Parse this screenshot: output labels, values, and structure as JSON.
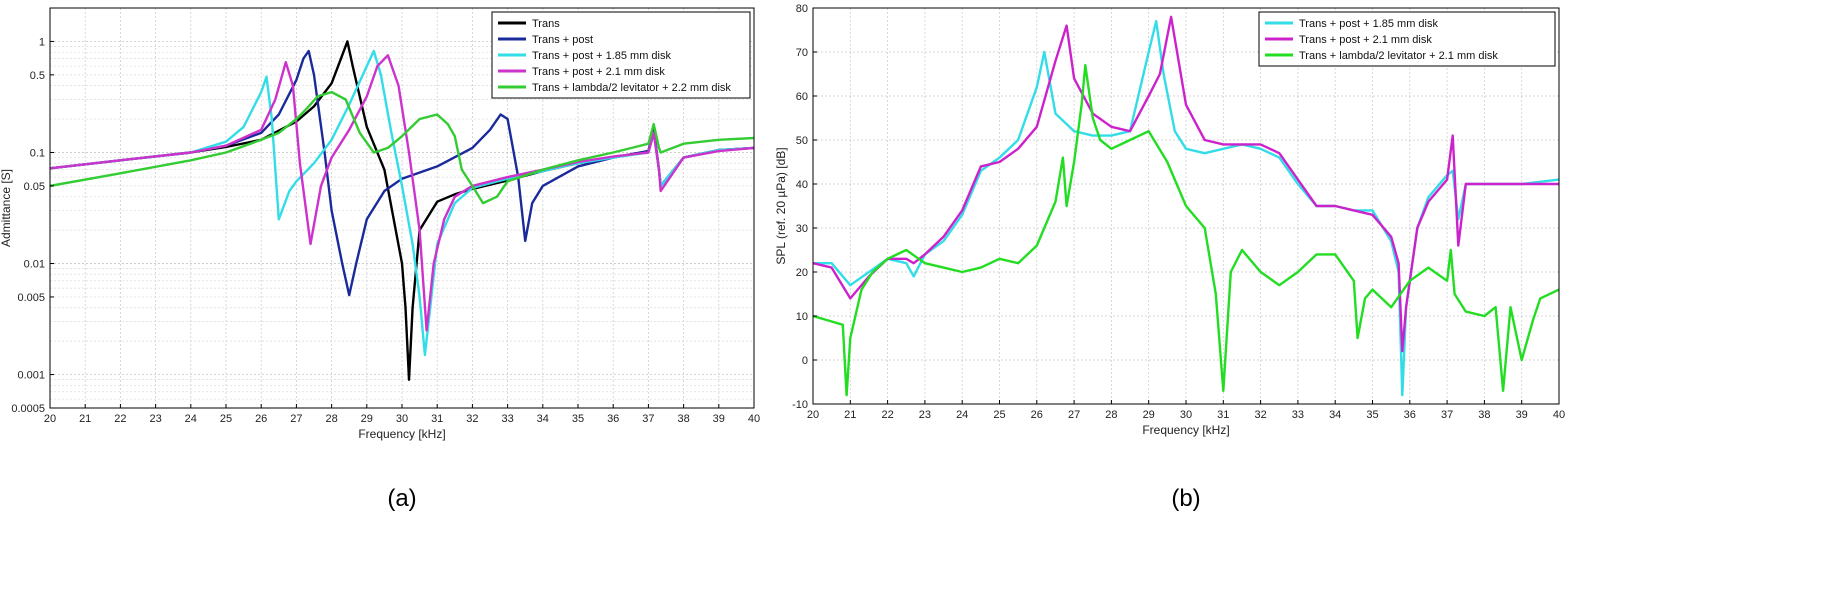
{
  "chart_data": [
    {
      "type": "line",
      "panel_label": "(a)",
      "xlabel": "Frequency [kHz]",
      "ylabel": "Admittance [S]",
      "xlim": [
        20,
        40
      ],
      "ylim": [
        0.0005,
        2
      ],
      "yscale": "log",
      "grid": true,
      "legend_position": "top-right",
      "xticks": [
        "20",
        "21",
        "22",
        "23",
        "24",
        "25",
        "26",
        "27",
        "28",
        "29",
        "30",
        "31",
        "32",
        "33",
        "34",
        "35",
        "36",
        "37",
        "38",
        "39",
        "40"
      ],
      "yticks": [
        {
          "v": 1,
          "label": "1"
        },
        {
          "v": 0.5,
          "label": "0.5"
        },
        {
          "v": 0.1,
          "label": "0.1"
        },
        {
          "v": 0.05,
          "label": "0.05"
        },
        {
          "v": 0.01,
          "label": "0.01"
        },
        {
          "v": 0.005,
          "label": "0.005"
        },
        {
          "v": 0.001,
          "label": "0.001"
        },
        {
          "v": 0.0005,
          "label": "0.0005"
        }
      ],
      "series": [
        {
          "name": "Trans",
          "color": "#000000",
          "x": [
            20,
            22,
            24,
            25,
            26,
            27,
            27.5,
            28,
            28.3,
            28.45,
            28.6,
            29,
            29.5,
            30,
            30.1,
            30.2,
            30.3,
            30.5,
            31,
            31.5,
            32,
            33,
            34,
            35,
            36,
            37,
            37.15,
            37.3,
            37.35,
            38,
            39,
            40
          ],
          "y": [
            0.072,
            0.085,
            0.1,
            0.112,
            0.13,
            0.19,
            0.26,
            0.42,
            0.75,
            1.0,
            0.6,
            0.17,
            0.07,
            0.01,
            0.004,
            0.0009,
            0.004,
            0.02,
            0.036,
            0.042,
            0.047,
            0.056,
            0.068,
            0.08,
            0.09,
            0.103,
            0.16,
            0.07,
            0.05,
            0.09,
            0.105,
            0.11
          ]
        },
        {
          "name": "Trans + post",
          "color": "#1a2a9a",
          "x": [
            20,
            22,
            24,
            25,
            26,
            26.5,
            27,
            27.2,
            27.35,
            27.5,
            27.8,
            28,
            28.3,
            28.5,
            28.7,
            29,
            29.5,
            30,
            31,
            32,
            32.5,
            32.8,
            33,
            33.3,
            33.5,
            33.7,
            34,
            35,
            36,
            37,
            37.15,
            37.3,
            37.35,
            38,
            39,
            40
          ],
          "y": [
            0.072,
            0.085,
            0.1,
            0.115,
            0.15,
            0.22,
            0.45,
            0.7,
            0.82,
            0.5,
            0.1,
            0.03,
            0.01,
            0.0052,
            0.01,
            0.025,
            0.045,
            0.058,
            0.075,
            0.11,
            0.16,
            0.22,
            0.2,
            0.06,
            0.016,
            0.035,
            0.05,
            0.075,
            0.09,
            0.103,
            0.16,
            0.07,
            0.05,
            0.09,
            0.105,
            0.11
          ]
        },
        {
          "name": "Trans + post + 1.85 mm disk",
          "color": "#33dde8",
          "x": [
            20,
            22,
            24,
            25,
            25.5,
            26,
            26.15,
            26.3,
            26.5,
            26.8,
            27,
            27.5,
            28,
            28.5,
            29,
            29.2,
            29.4,
            29.7,
            30,
            30.3,
            30.5,
            30.65,
            30.8,
            31,
            31.5,
            32,
            33,
            34,
            35,
            36,
            37,
            37.15,
            37.3,
            37.35,
            38,
            39,
            40
          ],
          "y": [
            0.072,
            0.085,
            0.1,
            0.125,
            0.17,
            0.35,
            0.48,
            0.2,
            0.025,
            0.045,
            0.055,
            0.08,
            0.13,
            0.27,
            0.6,
            0.82,
            0.5,
            0.15,
            0.05,
            0.015,
            0.005,
            0.0015,
            0.004,
            0.015,
            0.035,
            0.048,
            0.058,
            0.068,
            0.08,
            0.09,
            0.1,
            0.15,
            0.07,
            0.05,
            0.09,
            0.105,
            0.11
          ]
        },
        {
          "name": "Trans + post + 2.1 mm disk",
          "color": "#cc33cc",
          "x": [
            20,
            22,
            24,
            25,
            26,
            26.4,
            26.7,
            26.9,
            27.1,
            27.4,
            27.7,
            28,
            28.5,
            29,
            29.3,
            29.6,
            29.9,
            30.2,
            30.5,
            30.7,
            30.9,
            31.2,
            31.5,
            32,
            33,
            34,
            35,
            36,
            37,
            37.15,
            37.3,
            37.35,
            38,
            39,
            40
          ],
          "y": [
            0.072,
            0.085,
            0.1,
            0.115,
            0.16,
            0.3,
            0.65,
            0.4,
            0.08,
            0.015,
            0.05,
            0.09,
            0.16,
            0.32,
            0.6,
            0.75,
            0.4,
            0.1,
            0.02,
            0.0025,
            0.01,
            0.025,
            0.04,
            0.05,
            0.06,
            0.07,
            0.082,
            0.092,
            0.1,
            0.15,
            0.07,
            0.045,
            0.09,
            0.103,
            0.11
          ]
        },
        {
          "name": "Trans + lambda/2 levitator + 2.2 mm disk",
          "color": "#33cc33",
          "x": [
            20,
            22,
            24,
            25,
            26,
            26.5,
            27,
            27.3,
            27.6,
            28,
            28.4,
            28.8,
            29.2,
            29.6,
            30,
            30.5,
            31,
            31.3,
            31.5,
            31.7,
            32,
            32.3,
            32.7,
            33,
            34,
            35,
            36,
            37,
            37.15,
            37.3,
            37.35,
            38,
            39,
            40
          ],
          "y": [
            0.05,
            0.065,
            0.085,
            0.1,
            0.13,
            0.15,
            0.2,
            0.25,
            0.32,
            0.35,
            0.3,
            0.15,
            0.1,
            0.11,
            0.14,
            0.2,
            0.22,
            0.18,
            0.14,
            0.07,
            0.05,
            0.035,
            0.04,
            0.055,
            0.07,
            0.085,
            0.1,
            0.12,
            0.18,
            0.11,
            0.1,
            0.12,
            0.13,
            0.135
          ]
        }
      ]
    },
    {
      "type": "line",
      "panel_label": "(b)",
      "xlabel": "Frequency [kHz]",
      "ylabel": "SPL (ref. 20 µPa) [dB]",
      "xlim": [
        20,
        40
      ],
      "ylim": [
        -10,
        80
      ],
      "grid": true,
      "legend_position": "top-right",
      "xticks": [
        "20",
        "21",
        "22",
        "23",
        "24",
        "25",
        "26",
        "27",
        "28",
        "29",
        "30",
        "31",
        "32",
        "33",
        "34",
        "35",
        "36",
        "37",
        "38",
        "39",
        "40"
      ],
      "yticks": [
        "-10",
        "0",
        "10",
        "20",
        "30",
        "40",
        "50",
        "60",
        "70",
        "80"
      ],
      "series": [
        {
          "name": "Trans + post + 1.85 mm disk",
          "color": "#33dde8",
          "x": [
            20,
            20.5,
            21,
            21.5,
            22,
            22.5,
            22.7,
            23,
            23.5,
            24,
            24.5,
            25,
            25.5,
            26,
            26.2,
            26.5,
            27,
            27.5,
            28,
            28.5,
            29,
            29.2,
            29.4,
            29.7,
            30,
            30.5,
            31,
            31.5,
            32,
            32.5,
            33,
            33.5,
            34,
            34.5,
            35,
            35.5,
            35.7,
            35.8,
            35.9,
            36.2,
            36.5,
            37,
            37.15,
            37.3,
            37.5,
            38,
            39,
            40
          ],
          "y": [
            22,
            22,
            17,
            20,
            23,
            22,
            19,
            24,
            27,
            33,
            43,
            46,
            50,
            62,
            70,
            56,
            52,
            51,
            51,
            52,
            70,
            77,
            65,
            52,
            48,
            47,
            48,
            49,
            48,
            46,
            40,
            35,
            35,
            34,
            34,
            27,
            20,
            -8,
            12,
            30,
            37,
            42,
            43,
            32,
            40,
            40,
            40,
            41
          ]
        },
        {
          "name": "Trans + post + 2.1 mm disk",
          "color": "#cc22cc",
          "x": [
            20,
            20.5,
            21,
            21.5,
            22,
            22.5,
            22.7,
            23,
            23.5,
            24,
            24.5,
            25,
            25.5,
            26,
            26.5,
            26.8,
            27,
            27.5,
            28,
            28.5,
            29,
            29.3,
            29.6,
            30,
            30.5,
            31,
            31.5,
            32,
            32.5,
            33,
            33.5,
            34,
            34.5,
            35,
            35.5,
            35.7,
            35.8,
            35.9,
            36.2,
            36.5,
            37,
            37.15,
            37.3,
            37.5,
            38,
            39,
            40
          ],
          "y": [
            22,
            21,
            14,
            19,
            23,
            23,
            22,
            24,
            28,
            34,
            44,
            45,
            48,
            53,
            68,
            76,
            64,
            56,
            53,
            52,
            60,
            65,
            78,
            58,
            50,
            49,
            49,
            49,
            47,
            41,
            35,
            35,
            34,
            33,
            28,
            22,
            2,
            12,
            30,
            36,
            41,
            51,
            26,
            40,
            40,
            40,
            40
          ]
        },
        {
          "name": "Trans + lambda/2 levitator + 2.1 mm disk",
          "color": "#22dd22",
          "x": [
            20,
            20.4,
            20.8,
            20.9,
            21,
            21.3,
            21.6,
            22,
            22.5,
            23,
            23.5,
            24,
            24.5,
            25,
            25.5,
            26,
            26.5,
            26.7,
            26.8,
            27,
            27.2,
            27.3,
            27.5,
            27.7,
            28,
            28.5,
            29,
            29.5,
            30,
            30.5,
            30.8,
            31,
            31.2,
            31.5,
            32,
            32.5,
            33,
            33.5,
            34,
            34.5,
            34.6,
            34.8,
            35,
            35.5,
            36,
            36.5,
            37,
            37.1,
            37.2,
            37.5,
            38,
            38.3,
            38.5,
            38.7,
            39,
            39.3,
            39.5,
            40
          ],
          "y": [
            10,
            9,
            8,
            -8,
            5,
            16,
            20,
            23,
            25,
            22,
            21,
            20,
            21,
            23,
            22,
            26,
            36,
            46,
            35,
            45,
            58,
            67,
            55,
            50,
            48,
            50,
            52,
            45,
            35,
            30,
            15,
            -7,
            20,
            25,
            20,
            17,
            20,
            24,
            24,
            18,
            5,
            14,
            16,
            12,
            18,
            21,
            18,
            25,
            15,
            11,
            10,
            12,
            -7,
            12,
            0,
            9,
            14,
            16
          ]
        }
      ]
    }
  ]
}
